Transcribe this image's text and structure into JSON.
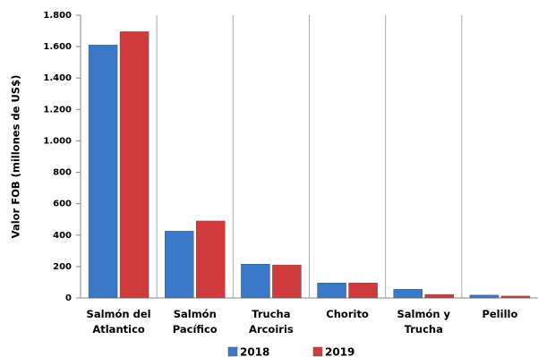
{
  "chart_data": {
    "type": "bar",
    "y_label": "Valor FOB (millones de US$)",
    "categories": [
      "Salmón del Atlantico",
      "Salmón Pacífico",
      "Trucha Arcoiris",
      "Chorito",
      "Salmón y Trucha",
      "Pelillo"
    ],
    "series": [
      {
        "name": "2018",
        "color": "#3a78c8",
        "values": [
          1610,
          425,
          215,
          95,
          55,
          18
        ]
      },
      {
        "name": "2019",
        "color": "#d03c3c",
        "values": [
          1695,
          490,
          210,
          95,
          22,
          12
        ]
      }
    ],
    "ylim": [
      0,
      1800
    ],
    "yticks": [
      0,
      200,
      400,
      600,
      800,
      {
        "value": 1000,
        "label": "1.000"
      },
      {
        "value": 1200,
        "label": "1.200"
      },
      {
        "value": 1400,
        "label": "1.400"
      },
      {
        "value": 1600,
        "label": "1.600"
      },
      {
        "value": 1800,
        "label": "1.800"
      }
    ],
    "x_grid": true
  }
}
